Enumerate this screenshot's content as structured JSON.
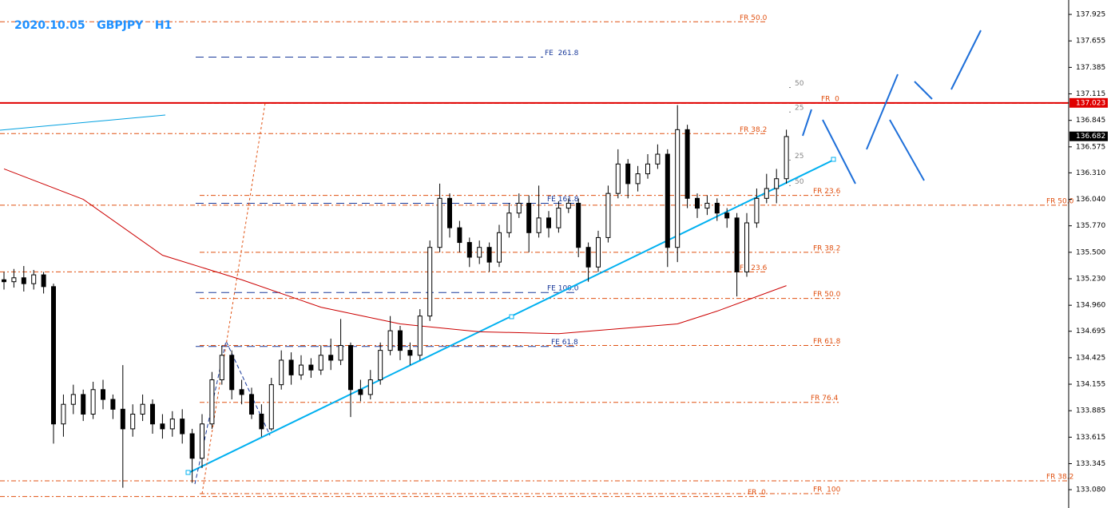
{
  "chart_data": {
    "type": "candlestick",
    "title": "2020.10.05   GBPJPY   H1",
    "open": [
      135.22,
      135.2,
      135.24,
      135.18,
      135.27,
      135.15,
      133.75,
      133.95,
      134.05,
      133.85,
      134.1,
      134.0,
      133.9,
      133.7,
      133.85,
      133.95,
      133.75,
      133.7,
      133.8,
      133.65,
      133.4,
      133.75,
      134.2,
      134.45,
      134.1,
      134.05,
      133.85,
      133.7,
      134.15,
      134.4,
      134.25,
      134.35,
      134.3,
      134.45,
      134.4,
      134.55,
      134.1,
      134.05,
      134.2,
      134.5,
      134.7,
      134.5,
      134.45,
      134.85,
      135.55,
      136.05,
      135.75,
      135.6,
      135.45,
      135.55,
      135.4,
      135.7,
      135.9,
      136.0,
      135.7,
      135.85,
      135.75,
      135.95,
      136.0,
      135.55,
      135.35,
      135.65,
      136.1,
      136.4,
      136.2,
      136.3,
      136.4,
      136.5,
      135.55,
      136.75,
      136.05,
      135.95,
      136.0,
      135.9,
      135.85,
      135.3,
      135.8,
      136.05,
      136.15,
      136.25
    ],
    "high": [
      135.3,
      135.33,
      135.36,
      135.32,
      135.3,
      135.18,
      134.05,
      134.15,
      134.1,
      134.18,
      134.2,
      134.05,
      134.35,
      133.95,
      134.05,
      134.0,
      133.85,
      133.88,
      133.9,
      133.7,
      133.85,
      134.28,
      134.55,
      134.5,
      134.2,
      134.12,
      133.95,
      134.22,
      134.5,
      134.48,
      134.45,
      134.42,
      134.55,
      134.62,
      134.82,
      134.58,
      134.2,
      134.3,
      134.58,
      134.85,
      134.75,
      134.58,
      134.92,
      135.62,
      136.2,
      136.1,
      135.82,
      135.65,
      135.62,
      135.6,
      135.78,
      136.0,
      136.1,
      136.08,
      136.18,
      135.92,
      136.02,
      136.05,
      136.05,
      135.6,
      135.72,
      136.18,
      136.55,
      136.45,
      136.38,
      136.5,
      136.6,
      136.55,
      137.0,
      136.8,
      136.1,
      136.08,
      136.05,
      135.95,
      135.9,
      135.9,
      136.15,
      136.3,
      136.35,
      136.75
    ],
    "low": [
      135.12,
      135.14,
      135.1,
      135.12,
      135.08,
      133.55,
      133.62,
      133.85,
      133.78,
      133.8,
      133.9,
      133.8,
      133.1,
      133.62,
      133.78,
      133.65,
      133.6,
      133.62,
      133.55,
      133.15,
      133.3,
      133.7,
      134.15,
      134.0,
      133.95,
      133.8,
      133.62,
      133.68,
      134.1,
      134.15,
      134.2,
      134.22,
      134.25,
      134.3,
      134.35,
      133.82,
      133.98,
      134.0,
      134.15,
      134.45,
      134.4,
      134.35,
      134.4,
      134.8,
      135.5,
      135.65,
      135.5,
      135.35,
      135.38,
      135.3,
      135.35,
      135.65,
      135.85,
      135.5,
      135.65,
      135.65,
      135.7,
      135.9,
      135.45,
      135.2,
      135.3,
      135.6,
      136.05,
      136.05,
      136.12,
      136.25,
      136.35,
      135.35,
      135.4,
      135.95,
      135.85,
      135.88,
      135.82,
      135.75,
      135.05,
      135.25,
      135.75,
      136.0,
      136.0,
      136.2
    ],
    "close": [
      135.2,
      135.24,
      135.18,
      135.27,
      135.15,
      133.75,
      133.95,
      134.05,
      133.85,
      134.1,
      134.0,
      133.9,
      133.7,
      133.85,
      133.95,
      133.75,
      133.7,
      133.8,
      133.65,
      133.4,
      133.75,
      134.2,
      134.45,
      134.1,
      134.05,
      133.85,
      133.7,
      134.15,
      134.4,
      134.25,
      134.35,
      134.3,
      134.45,
      134.4,
      134.55,
      134.1,
      134.05,
      134.2,
      134.5,
      134.7,
      134.5,
      134.45,
      134.85,
      135.55,
      136.05,
      135.75,
      135.6,
      135.45,
      135.55,
      135.4,
      135.7,
      135.9,
      136.0,
      135.7,
      135.85,
      135.75,
      135.95,
      136.0,
      135.55,
      135.35,
      135.65,
      136.1,
      136.4,
      136.2,
      136.3,
      136.4,
      136.5,
      135.55,
      136.75,
      136.05,
      135.95,
      136.0,
      135.9,
      135.85,
      135.3,
      135.8,
      136.05,
      136.15,
      136.25,
      136.68
    ],
    "ma": {
      "color": "#cc0000",
      "index": [
        0,
        8,
        16,
        24,
        32,
        40,
        48,
        56,
        62,
        68,
        72,
        79
      ],
      "values": [
        136.35,
        136.04,
        135.47,
        135.22,
        134.94,
        134.77,
        134.69,
        134.67,
        134.72,
        134.77,
        134.9,
        135.16
      ]
    },
    "ylim": [
      132.893,
      138.072
    ],
    "yticks": [
      137.925,
      137.655,
      137.385,
      137.115,
      136.845,
      136.575,
      {
        "value": 136.31,
        "label": "136.310"
      },
      {
        "value": 136.04,
        "label": "136.040"
      },
      {
        "value": 135.77,
        "label": "135.770"
      },
      {
        "value": 135.5,
        "label": "135.500"
      },
      {
        "value": 135.23,
        "label": "135.230"
      },
      {
        "value": 134.96,
        "label": "134.960"
      },
      134.695,
      134.425,
      134.155,
      133.885,
      133.615,
      133.345,
      {
        "value": 133.08,
        "label": "133.080"
      }
    ],
    "price_labels": [
      {
        "value": 137.023,
        "color": "#e00000"
      },
      {
        "value": 136.682,
        "color": "#000000"
      }
    ],
    "levels": [
      {
        "label": "FR 50.0",
        "price": 137.85
      },
      {
        "label": "FE  261.8",
        "price": 137.49
      },
      {
        "label": "50",
        "price": 137.18
      },
      {
        "label": "FR  0",
        "price": 137.02
      },
      {
        "label": "25",
        "price": 136.93
      },
      {
        "label": "FR 38.2",
        "price": 136.71
      },
      {
        "label": "25",
        "price": 136.44
      },
      {
        "label": "50",
        "price": 136.18
      },
      {
        "label": "FR 23.6",
        "price": 136.08
      },
      {
        "label": "FE 161.8",
        "price": 136.0
      },
      {
        "label": "FR 50.0",
        "price": 135.98
      },
      {
        "label": "FR 38.2",
        "price": 135.5
      },
      {
        "label": "FR 23.6",
        "price": 135.3
      },
      {
        "label": "FE 100.0",
        "price": 135.09
      },
      {
        "label": "FR 50.0",
        "price": 135.03
      },
      {
        "label": "FE 61.8",
        "price": 134.54
      },
      {
        "label": "FR 61.8",
        "price": 134.55
      },
      {
        "label": "FR 76.4",
        "price": 133.97
      },
      {
        "label": "FR 38.2",
        "price": 133.17
      },
      {
        "label": "FR  100",
        "price": 133.04
      },
      {
        "label": "FR  0",
        "price": 133.01
      }
    ]
  }
}
